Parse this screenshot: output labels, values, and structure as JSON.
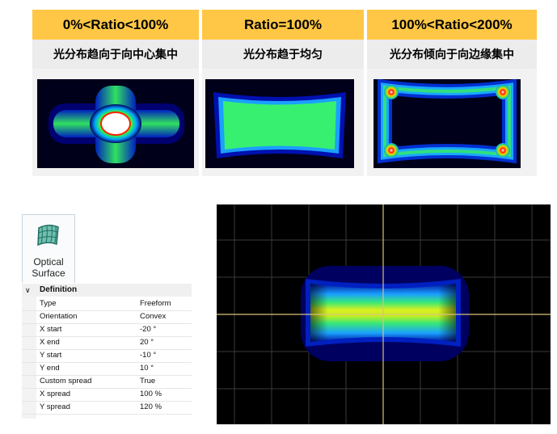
{
  "ratio_table": {
    "columns": [
      {
        "header": "0%<Ratio<100%",
        "description": "光分布趋向于向中心集中",
        "pattern": "center-cross-beam"
      },
      {
        "header": "Ratio=100%",
        "description": "光分布趋于均匀",
        "pattern": "uniform-beam"
      },
      {
        "header": "100%<Ratio<200%",
        "description": "光分布倾向于向边缘集中",
        "pattern": "edge-ring-beam"
      }
    ],
    "colors": {
      "header_bg": "#ffc745",
      "subheader_bg": "#ececec"
    }
  },
  "optical_surface_button": {
    "label": "Optical Surface",
    "icon": "optical-surface-icon"
  },
  "property_grid": {
    "section_title": "Definition",
    "rows": [
      {
        "key": "Type",
        "value": "Freeform"
      },
      {
        "key": "Orientation",
        "value": "Convex"
      },
      {
        "key": "X start",
        "value": "-20 °"
      },
      {
        "key": "X end",
        "value": "20 °"
      },
      {
        "key": "Y start",
        "value": "-10 °"
      },
      {
        "key": "Y end",
        "value": "10 °"
      },
      {
        "key": "Custom spread",
        "value": "True"
      },
      {
        "key": "X spread",
        "value": "100 %"
      },
      {
        "key": "Y spread",
        "value": "120 %"
      }
    ]
  },
  "beam_display": {
    "grid_color": "#3a3a3a",
    "crosshair_color": "#d9c27a",
    "pattern": "wide-bar-beam"
  }
}
